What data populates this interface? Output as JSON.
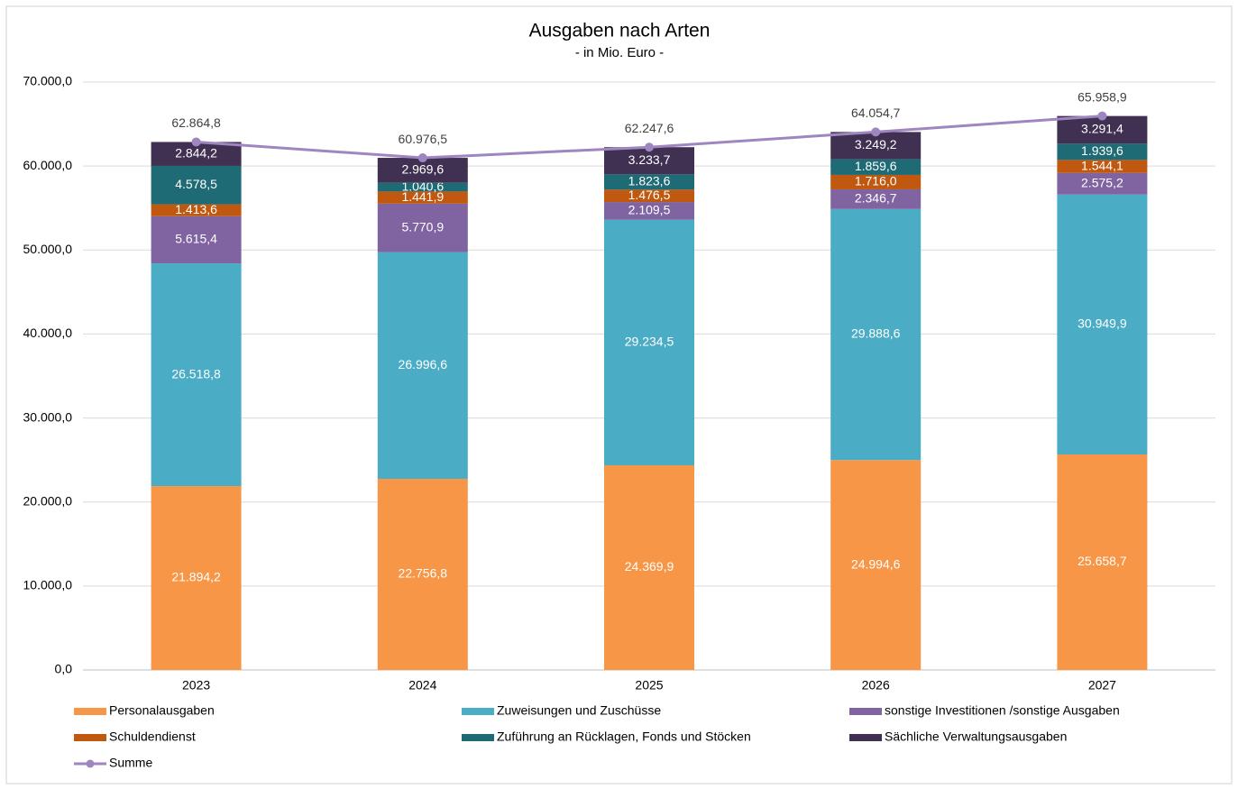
{
  "chart_data": {
    "type": "bar",
    "stacked": true,
    "title": "Ausgaben nach Arten",
    "subtitle": "- in Mio. Euro -",
    "categories": [
      "2023",
      "2024",
      "2025",
      "2026",
      "2027"
    ],
    "ylim": [
      0,
      70000
    ],
    "yticks": [
      {
        "value": 0,
        "label": "0,0"
      },
      {
        "value": 10000,
        "label": "10.000,0"
      },
      {
        "value": 20000,
        "label": "20.000,0"
      },
      {
        "value": 30000,
        "label": "30.000,0"
      },
      {
        "value": 40000,
        "label": "40.000,0"
      },
      {
        "value": 50000,
        "label": "50.000,0"
      },
      {
        "value": 60000,
        "label": "60.000,0"
      },
      {
        "value": 70000,
        "label": "70.000,0"
      }
    ],
    "grid": true,
    "legend": "bottom",
    "series": [
      {
        "name": "Personalausgaben",
        "color": "#f79646",
        "values": [
          21894.2,
          22756.8,
          24369.9,
          24994.6,
          25658.7
        ],
        "value_labels": [
          "21.894,2",
          "22.756,8",
          "24.369,9",
          "24.994,6",
          "25.658,7"
        ]
      },
      {
        "name": "Zuweisungen und Zuschüsse",
        "color": "#4bacc6",
        "values": [
          26518.8,
          26996.6,
          29234.5,
          29888.6,
          30949.9
        ],
        "value_labels": [
          "26.518,8",
          "26.996,6",
          "29.234,5",
          "29.888,6",
          "30.949,9"
        ]
      },
      {
        "name": "sonstige Investitionen /sonstige Ausgaben",
        "color": "#8064a2",
        "values": [
          5615.4,
          5770.9,
          2109.5,
          2346.7,
          2575.2
        ],
        "value_labels": [
          "5.615,4",
          "5.770,9",
          "2.109,5",
          "2.346,7",
          "2.575,2"
        ]
      },
      {
        "name": "Schuldendienst",
        "color": "#c0580f",
        "values": [
          1413.6,
          1441.9,
          1476.5,
          1716.0,
          1544.1
        ],
        "value_labels": [
          "1.413,6",
          "1.441,9",
          "1.476,5",
          "1.716,0",
          "1.544,1"
        ]
      },
      {
        "name": "Zuführung an Rücklagen, Fonds und Stöcken",
        "color": "#1f6b75",
        "values": [
          4578.5,
          1040.6,
          1823.6,
          1859.6,
          1939.6
        ],
        "value_labels": [
          "4.578,5",
          "1.040,6",
          "1.823,6",
          "1.859,6",
          "1.939,6"
        ]
      },
      {
        "name": "Sächliche Verwaltungsausgaben",
        "color": "#403152",
        "values": [
          2844.2,
          2969.6,
          3233.7,
          3249.2,
          3291.4
        ],
        "value_labels": [
          "2.844,2",
          "2.969,6",
          "3.233,7",
          "3.249,2",
          "3.291,4"
        ]
      },
      {
        "name": "Summe",
        "type": "line",
        "color": "#9f86c0",
        "values": [
          62864.8,
          60976.5,
          62247.6,
          64054.7,
          65958.9
        ],
        "value_labels": [
          "62.864,8",
          "60.976,5",
          "62.247,6",
          "64.054,7",
          "65.958,9"
        ]
      }
    ]
  }
}
